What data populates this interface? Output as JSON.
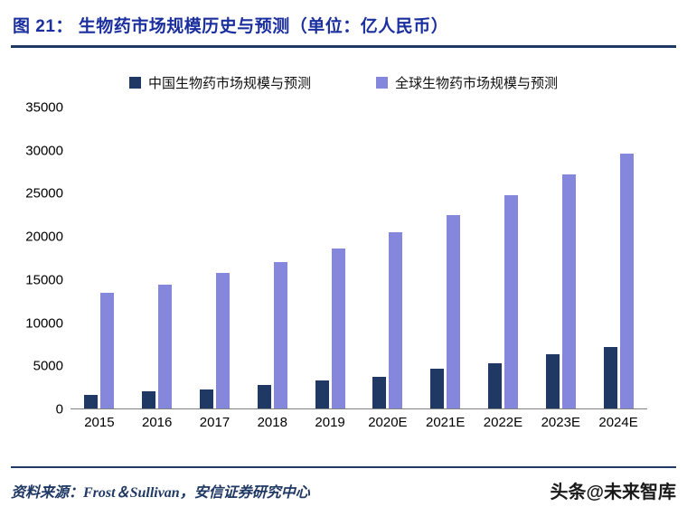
{
  "header": {
    "title": "图 21：  生物药市场规模历史与预测（单位：亿人民币）"
  },
  "colors": {
    "title": "#1b2f9e",
    "rule": "#1F3864",
    "china_series": "#1F3864",
    "global_series": "#8487DB"
  },
  "legend": [
    {
      "label": "中国生物药市场规模与预测",
      "color": "#1F3864"
    },
    {
      "label": "全球生物药市场规模与预测",
      "color": "#8487DB"
    }
  ],
  "chart_data": {
    "type": "bar",
    "title": "生物药市场规模历史与预测（单位：亿人民币）",
    "categories": [
      "2015",
      "2016",
      "2017",
      "2018",
      "2019",
      "2020E",
      "2021E",
      "2022E",
      "2023E",
      "2024E"
    ],
    "series": [
      {
        "name": "中国生物药市场规模与预测",
        "color": "#1F3864",
        "values": [
          1600,
          2000,
          2200,
          2700,
          3300,
          3700,
          4600,
          5200,
          6300,
          7100
        ]
      },
      {
        "name": "全球生物药市场规模与预测",
        "color": "#8487DB",
        "values": [
          13400,
          14400,
          15700,
          17000,
          18600,
          20400,
          22400,
          24700,
          27100,
          29600
        ]
      }
    ],
    "xlabel": "",
    "ylabel": "",
    "ylim": [
      0,
      35000
    ],
    "yticks": [
      0,
      5000,
      10000,
      15000,
      20000,
      25000,
      30000,
      35000
    ],
    "grid": false,
    "legend_position": "top"
  },
  "footer": {
    "source": "资料来源：Frost＆Sullivan，安信证券研究中心",
    "watermark": "头条@未来智库"
  }
}
